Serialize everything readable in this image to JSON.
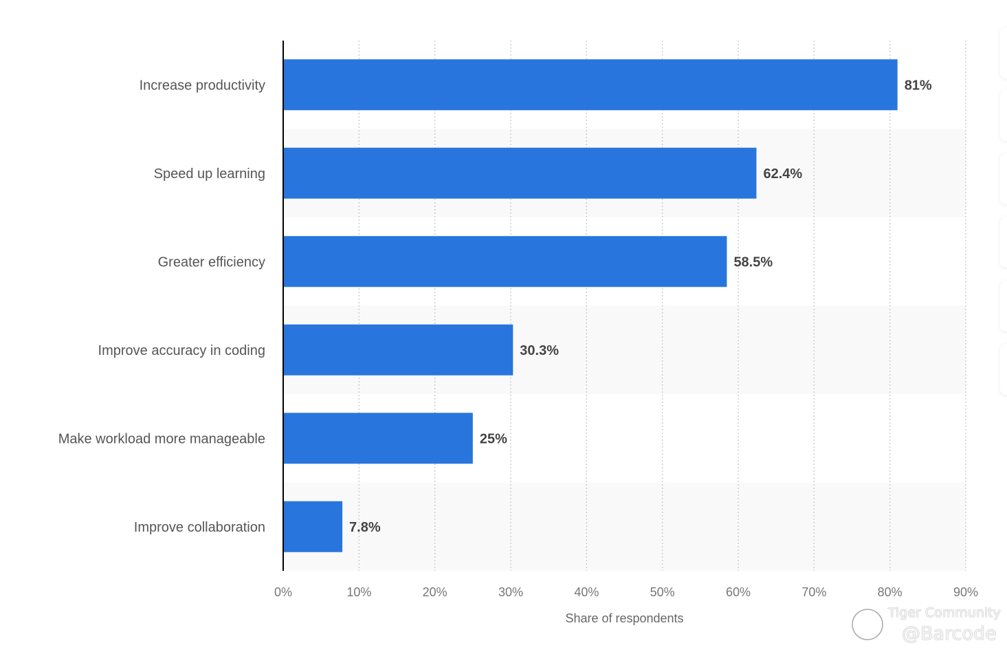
{
  "chart_data": {
    "type": "bar",
    "orientation": "horizontal",
    "categories": [
      "Increase productivity",
      "Speed up learning",
      "Greater efficiency",
      "Improve accuracy in coding",
      "Make workload more manageable",
      "Improve collaboration"
    ],
    "values": [
      81,
      62.4,
      58.5,
      30.3,
      25,
      7.8
    ],
    "data_labels": [
      "81%",
      "62.4%",
      "58.5%",
      "30.3%",
      "25%",
      "7.8%"
    ],
    "xlabel": "Share of respondents",
    "ylabel": "",
    "xlim": [
      0,
      90
    ],
    "xticks": [
      0,
      10,
      20,
      30,
      40,
      50,
      60,
      70,
      80,
      90
    ],
    "xtick_labels": [
      "0%",
      "10%",
      "20%",
      "30%",
      "40%",
      "50%",
      "60%",
      "70%",
      "80%",
      "90%"
    ],
    "grid": "vertical dotted",
    "bar_color": "#2876dd",
    "band_color": "#f9f9f9"
  },
  "watermark": {
    "line1": "Tiger Community",
    "line2": "@Barcode"
  }
}
